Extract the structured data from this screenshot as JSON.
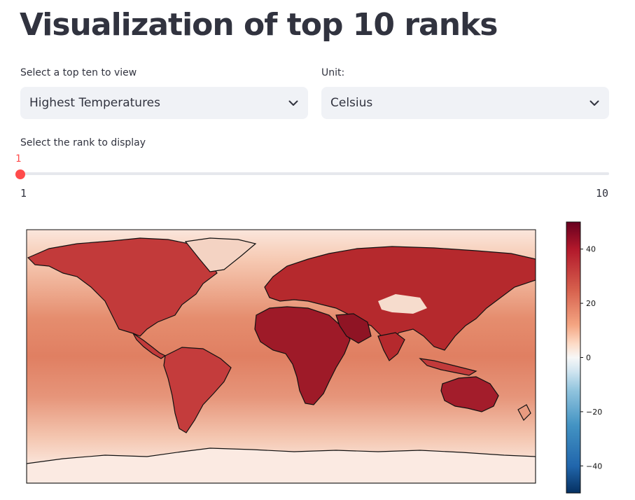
{
  "page": {
    "title": "Visualization of top 10 ranks"
  },
  "top_ten_select": {
    "label": "Select a top ten to view",
    "selected": "Highest Temperatures"
  },
  "unit_select": {
    "label": "Unit:",
    "selected": "Celsius"
  },
  "rank_slider": {
    "label": "Select the rank to display",
    "value": 1,
    "value_text": "1",
    "min_text": "1",
    "max_text": "10"
  },
  "chart_data": {
    "type": "heatmap",
    "title": "",
    "colormap": "RdBu_r",
    "colorbar": {
      "min": -50,
      "max": 50,
      "ticks": [
        40,
        20,
        0,
        -20,
        -40
      ],
      "tick_labels": [
        "40",
        "20",
        "0",
        "−20",
        "−40"
      ]
    },
    "map": "world coastlines, plate carree projection"
  },
  "colors": {
    "accent": "#ff4b4b",
    "select_bg": "#f0f2f6",
    "text": "#31333f"
  },
  "icons": {
    "dropdown": "chevron-down-icon"
  }
}
